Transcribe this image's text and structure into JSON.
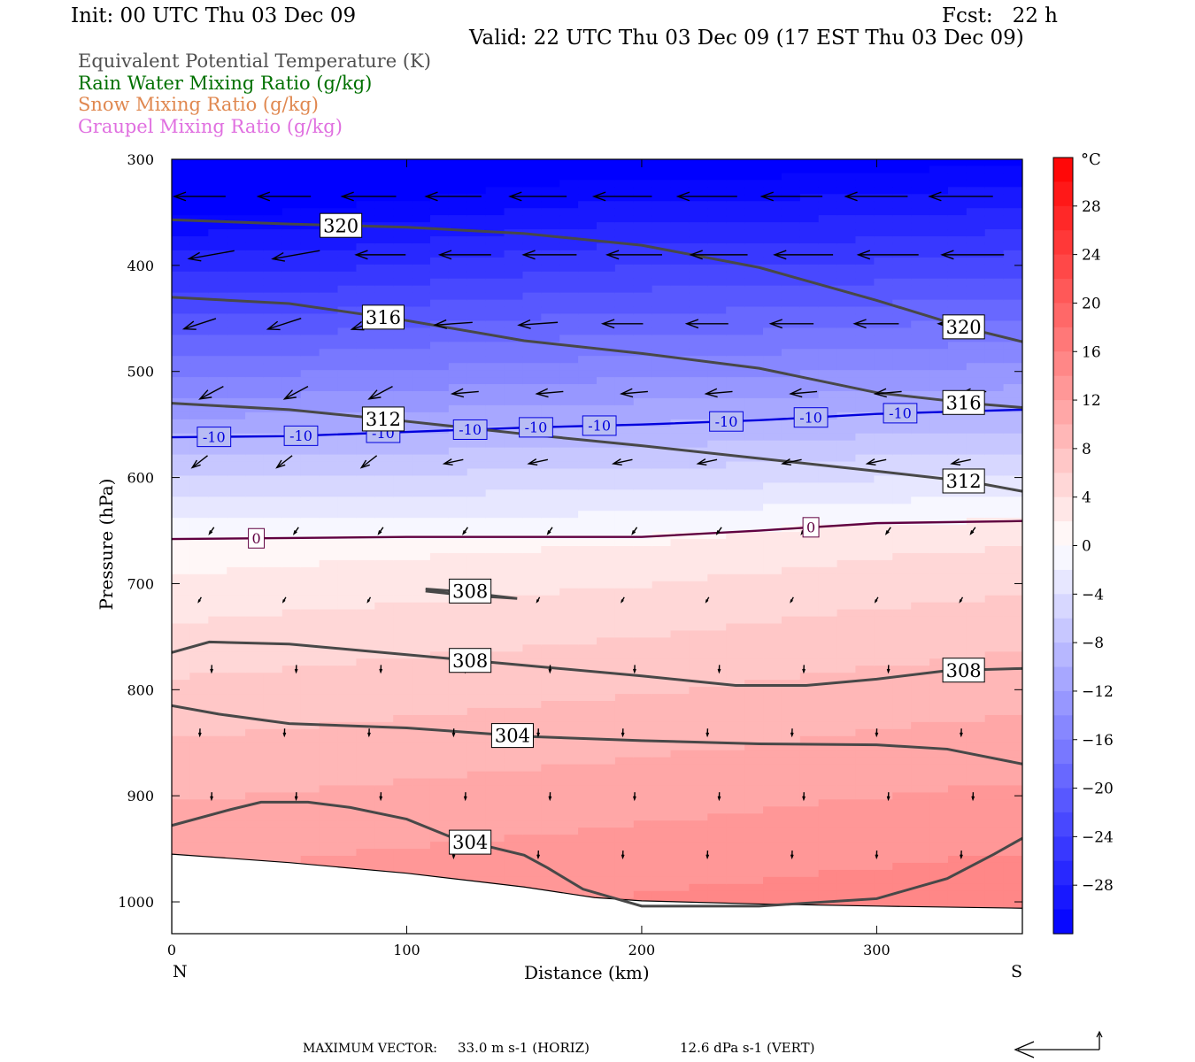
{
  "header": {
    "init": "Init: 00 UTC Thu 03 Dec 09",
    "fcst": "Fcst:   22 h",
    "valid": "Valid: 22 UTC Thu 03 Dec 09 (17 EST Thu 03 Dec 09)"
  },
  "legend": {
    "items": [
      {
        "label": "Equivalent Potential Temperature (K)",
        "color": "#505050"
      },
      {
        "label": "Rain Water Mixing Ratio (g/kg)",
        "color": "#007000"
      },
      {
        "label": "Snow Mixing Ratio (g/kg)",
        "color": "#e08850"
      },
      {
        "label": "Graupel Mixing Ratio (g/kg)",
        "color": "#e070e0"
      }
    ]
  },
  "footer": {
    "max_vector_label": "MAXIMUM VECTOR:",
    "horiz": "33.0 m s-1 (HORIZ)",
    "vert": "12.6 dPa s-1 (VERT)"
  },
  "chart_data": {
    "type": "cross-section",
    "xlabel": "Distance (km)",
    "ylabel": "Pressure (hPa)",
    "xlim": [
      0,
      362
    ],
    "ylim": [
      1030,
      300
    ],
    "xticks": [
      0,
      100,
      200,
      300
    ],
    "yticks": [
      300,
      400,
      500,
      600,
      700,
      800,
      900,
      1000
    ],
    "x_endpoints": {
      "left": "N",
      "right": "S"
    },
    "colorbar": {
      "unit": "°C",
      "range": [
        -32,
        32
      ],
      "ticks": [
        28,
        24,
        20,
        16,
        12,
        8,
        4,
        0,
        -4,
        -8,
        -12,
        -16,
        -20,
        -24,
        -28
      ],
      "cold_color": "#0000ff",
      "warm_color": "#ff0000"
    },
    "temperature_isotherms": [
      {
        "value": -10,
        "color": "#0000dd",
        "label": "-10",
        "points": [
          [
            0,
            562
          ],
          [
            50,
            561
          ],
          [
            100,
            557
          ],
          [
            150,
            553
          ],
          [
            200,
            550
          ],
          [
            250,
            546
          ],
          [
            300,
            540
          ],
          [
            362,
            536
          ]
        ],
        "labels_at": [
          18,
          55,
          90,
          127,
          155,
          182,
          236,
          272,
          310
        ]
      },
      {
        "value": 0,
        "color": "#600040",
        "label": "0",
        "points": [
          [
            0,
            658
          ],
          [
            50,
            657
          ],
          [
            100,
            656
          ],
          [
            150,
            656
          ],
          [
            200,
            656
          ],
          [
            250,
            650
          ],
          [
            300,
            643
          ],
          [
            362,
            641
          ]
        ],
        "labels_at": [
          36,
          272
        ]
      }
    ],
    "theta_e_contours": [
      {
        "value": 320,
        "color": "#484848",
        "label": "320",
        "points": [
          [
            0,
            357
          ],
          [
            50,
            361
          ],
          [
            100,
            364
          ],
          [
            150,
            370
          ],
          [
            200,
            381
          ],
          [
            250,
            402
          ],
          [
            300,
            433
          ],
          [
            340,
            460
          ],
          [
            362,
            472
          ]
        ],
        "labels_at": [
          72,
          337
        ]
      },
      {
        "value": 316,
        "color": "#484848",
        "label": "316",
        "points": [
          [
            0,
            430
          ],
          [
            50,
            436
          ],
          [
            100,
            452
          ],
          [
            150,
            471
          ],
          [
            200,
            483
          ],
          [
            250,
            497
          ],
          [
            300,
            520
          ],
          [
            340,
            530
          ],
          [
            362,
            534
          ]
        ],
        "labels_at": [
          90,
          337
        ]
      },
      {
        "value": 312,
        "color": "#484848",
        "label": "312",
        "points": [
          [
            0,
            530
          ],
          [
            50,
            536
          ],
          [
            100,
            547
          ],
          [
            150,
            559
          ],
          [
            200,
            570
          ],
          [
            250,
            582
          ],
          [
            300,
            594
          ],
          [
            340,
            604
          ],
          [
            362,
            613
          ]
        ],
        "labels_at": [
          90,
          337
        ]
      },
      {
        "value": 308,
        "color": "#484848",
        "label": "308",
        "points": [
          [
            0,
            765
          ],
          [
            16,
            755
          ],
          [
            50,
            757
          ],
          [
            100,
            767
          ],
          [
            150,
            777
          ],
          [
            200,
            787
          ],
          [
            240,
            796
          ],
          [
            270,
            796
          ],
          [
            300,
            790
          ],
          [
            330,
            782
          ],
          [
            362,
            780
          ]
        ],
        "labels_at": [
          127,
          337
        ]
      },
      {
        "value": 308,
        "color": "#484848",
        "label": "308",
        "points": [
          [
            108,
            705
          ],
          [
            120,
            707
          ],
          [
            135,
            711
          ],
          [
            147,
            714
          ],
          [
            140,
            713
          ],
          [
            125,
            711
          ],
          [
            108,
            707
          ]
        ],
        "labels_at": [
          127
        ]
      },
      {
        "value": 304,
        "color": "#484848",
        "label": "304",
        "points": [
          [
            0,
            815
          ],
          [
            20,
            823
          ],
          [
            50,
            832
          ],
          [
            100,
            836
          ],
          [
            150,
            844
          ],
          [
            200,
            848
          ],
          [
            250,
            851
          ],
          [
            300,
            852
          ],
          [
            330,
            856
          ],
          [
            362,
            870
          ]
        ],
        "labels_at": [
          145
        ]
      },
      {
        "value": 304,
        "color": "#484848",
        "label": "304",
        "points": [
          [
            0,
            928
          ],
          [
            25,
            913
          ],
          [
            38,
            906
          ],
          [
            58,
            906
          ],
          [
            76,
            911
          ],
          [
            100,
            922
          ],
          [
            120,
            940
          ],
          [
            150,
            956
          ],
          [
            160,
            968
          ],
          [
            175,
            988
          ],
          [
            200,
            1004
          ],
          [
            250,
            1004
          ],
          [
            300,
            997
          ],
          [
            330,
            978
          ],
          [
            350,
            955
          ],
          [
            362,
            940
          ]
        ],
        "labels_at": [
          127
        ]
      }
    ],
    "terrain": {
      "color": "#ffffff",
      "points": [
        [
          0,
          955
        ],
        [
          50,
          963
        ],
        [
          100,
          973
        ],
        [
          150,
          986
        ],
        [
          180,
          996
        ],
        [
          200,
          999
        ],
        [
          250,
          1002
        ],
        [
          300,
          1004
        ],
        [
          362,
          1006
        ]
      ]
    },
    "wind_vectors": {
      "note": "horizontal wind arrows, largest aloft",
      "max_horiz": 33.0,
      "max_vert": 12.6
    }
  }
}
